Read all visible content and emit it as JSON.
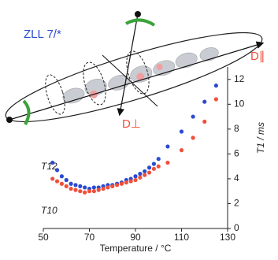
{
  "chart_data": {
    "type": "scatter",
    "xlabel": "Temperature / °C",
    "ylabel": "T1 / ms",
    "annotations": [
      "ZLL 7/*",
      "D∥",
      "D⊥"
    ],
    "x": [
      54,
      56,
      58,
      60,
      62,
      64,
      66,
      68,
      70,
      72,
      74,
      76,
      78,
      80,
      82,
      84,
      86,
      88,
      90,
      92,
      94,
      96,
      98,
      100,
      104,
      110,
      115,
      120,
      125
    ],
    "series": [
      {
        "name": "T12",
        "color": "#2b4bd0",
        "values": [
          5.3,
          4.7,
          4.2,
          3.9,
          3.6,
          3.5,
          3.4,
          3.3,
          3.2,
          3.3,
          3.3,
          3.4,
          3.5,
          3.5,
          3.6,
          3.7,
          3.9,
          4.0,
          4.2,
          4.4,
          4.6,
          4.9,
          5.2,
          5.6,
          6.6,
          7.8,
          9.0,
          10.2,
          11.5
        ]
      },
      {
        "name": "T10",
        "color": "#f0503a",
        "values": [
          4.0,
          3.8,
          3.6,
          3.4,
          3.2,
          3.1,
          3.0,
          2.9,
          3.0,
          3.0,
          3.1,
          3.2,
          3.3,
          3.4,
          3.5,
          3.6,
          3.7,
          3.8,
          3.9,
          4.1,
          4.3,
          4.5,
          4.8,
          5.0,
          5.3,
          6.3,
          7.3,
          8.6,
          10.4
        ]
      }
    ],
    "xlim": [
      50,
      130
    ],
    "xticks": [
      50,
      70,
      90,
      110,
      130
    ],
    "ylim": [
      0,
      13
    ],
    "yticks": [
      0,
      2,
      4,
      6,
      8,
      10,
      12
    ]
  }
}
